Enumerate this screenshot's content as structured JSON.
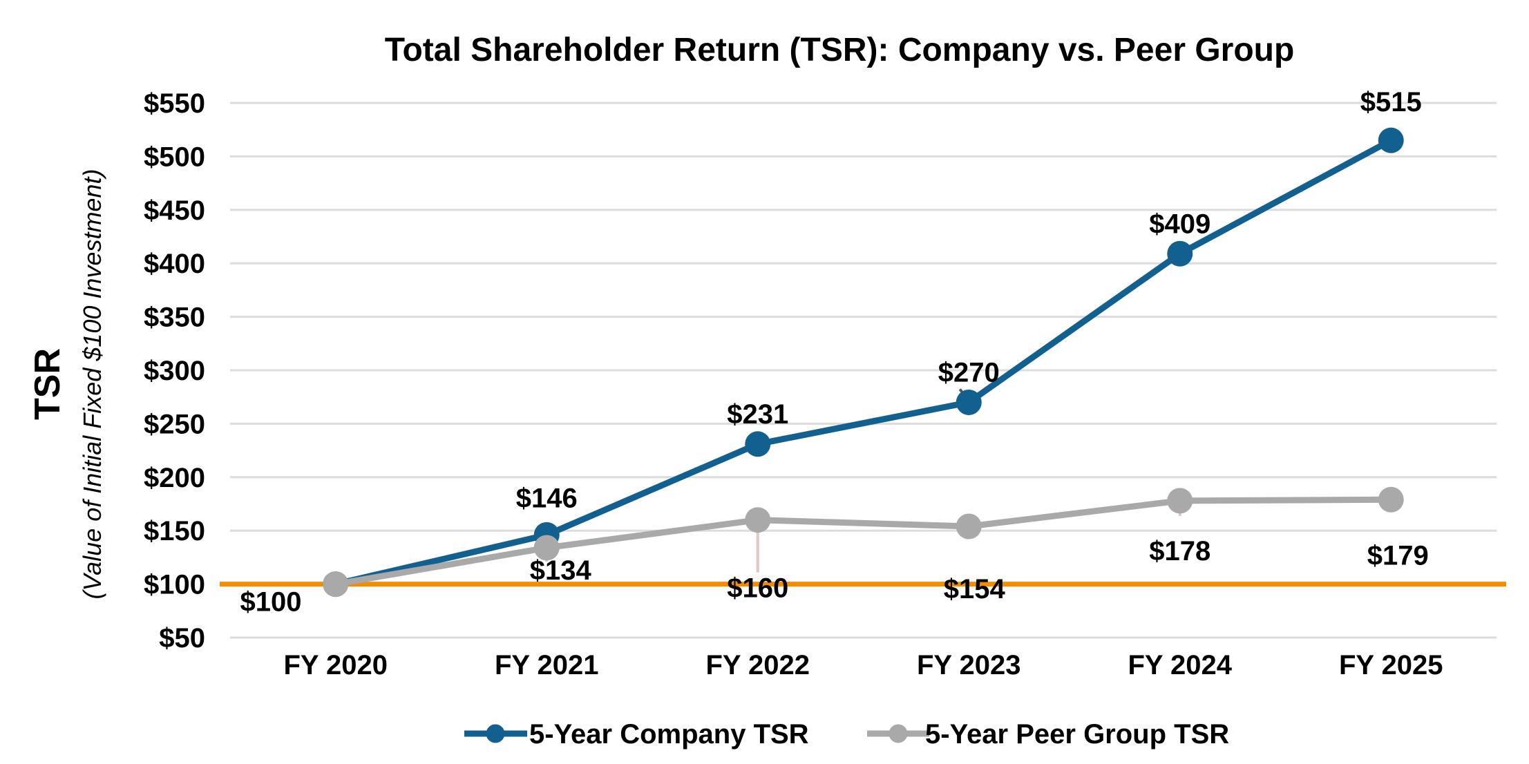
{
  "chart_data": {
    "type": "line",
    "title": "Total Shareholder Return (TSR): Company vs. Peer Group",
    "y_axis_title": "TSR",
    "y_axis_subtitle": "(Value of Initial Fixed $100 Investment)",
    "categories": [
      "FY 2020",
      "FY 2021",
      "FY 2022",
      "FY 2023",
      "FY 2024",
      "FY 2025"
    ],
    "series": [
      {
        "name": "5-Year Company TSR",
        "color": "#12608F",
        "values": [
          100,
          146,
          231,
          270,
          409,
          515
        ],
        "labels": [
          "",
          "$146",
          "$231",
          "$270",
          "$409",
          "$515"
        ],
        "label_position": "above"
      },
      {
        "name": "5-Year Peer Group TSR",
        "color": "#A9A9A9",
        "values": [
          100,
          134,
          160,
          154,
          178,
          179
        ],
        "labels": [
          "",
          "$134",
          "$160",
          "$154",
          "$178",
          "$179"
        ],
        "label_position": "below"
      }
    ],
    "benchmark_line": {
      "value": 100,
      "label": "$100",
      "color": "#F28C00"
    },
    "ylim": [
      50,
      550
    ],
    "y_ticks": [
      550,
      500,
      450,
      400,
      350,
      300,
      250,
      200,
      150,
      100,
      50
    ],
    "tick_prefix": "$",
    "grid": true,
    "gridline_color": "#DCDCDC",
    "legend_position": "bottom"
  }
}
